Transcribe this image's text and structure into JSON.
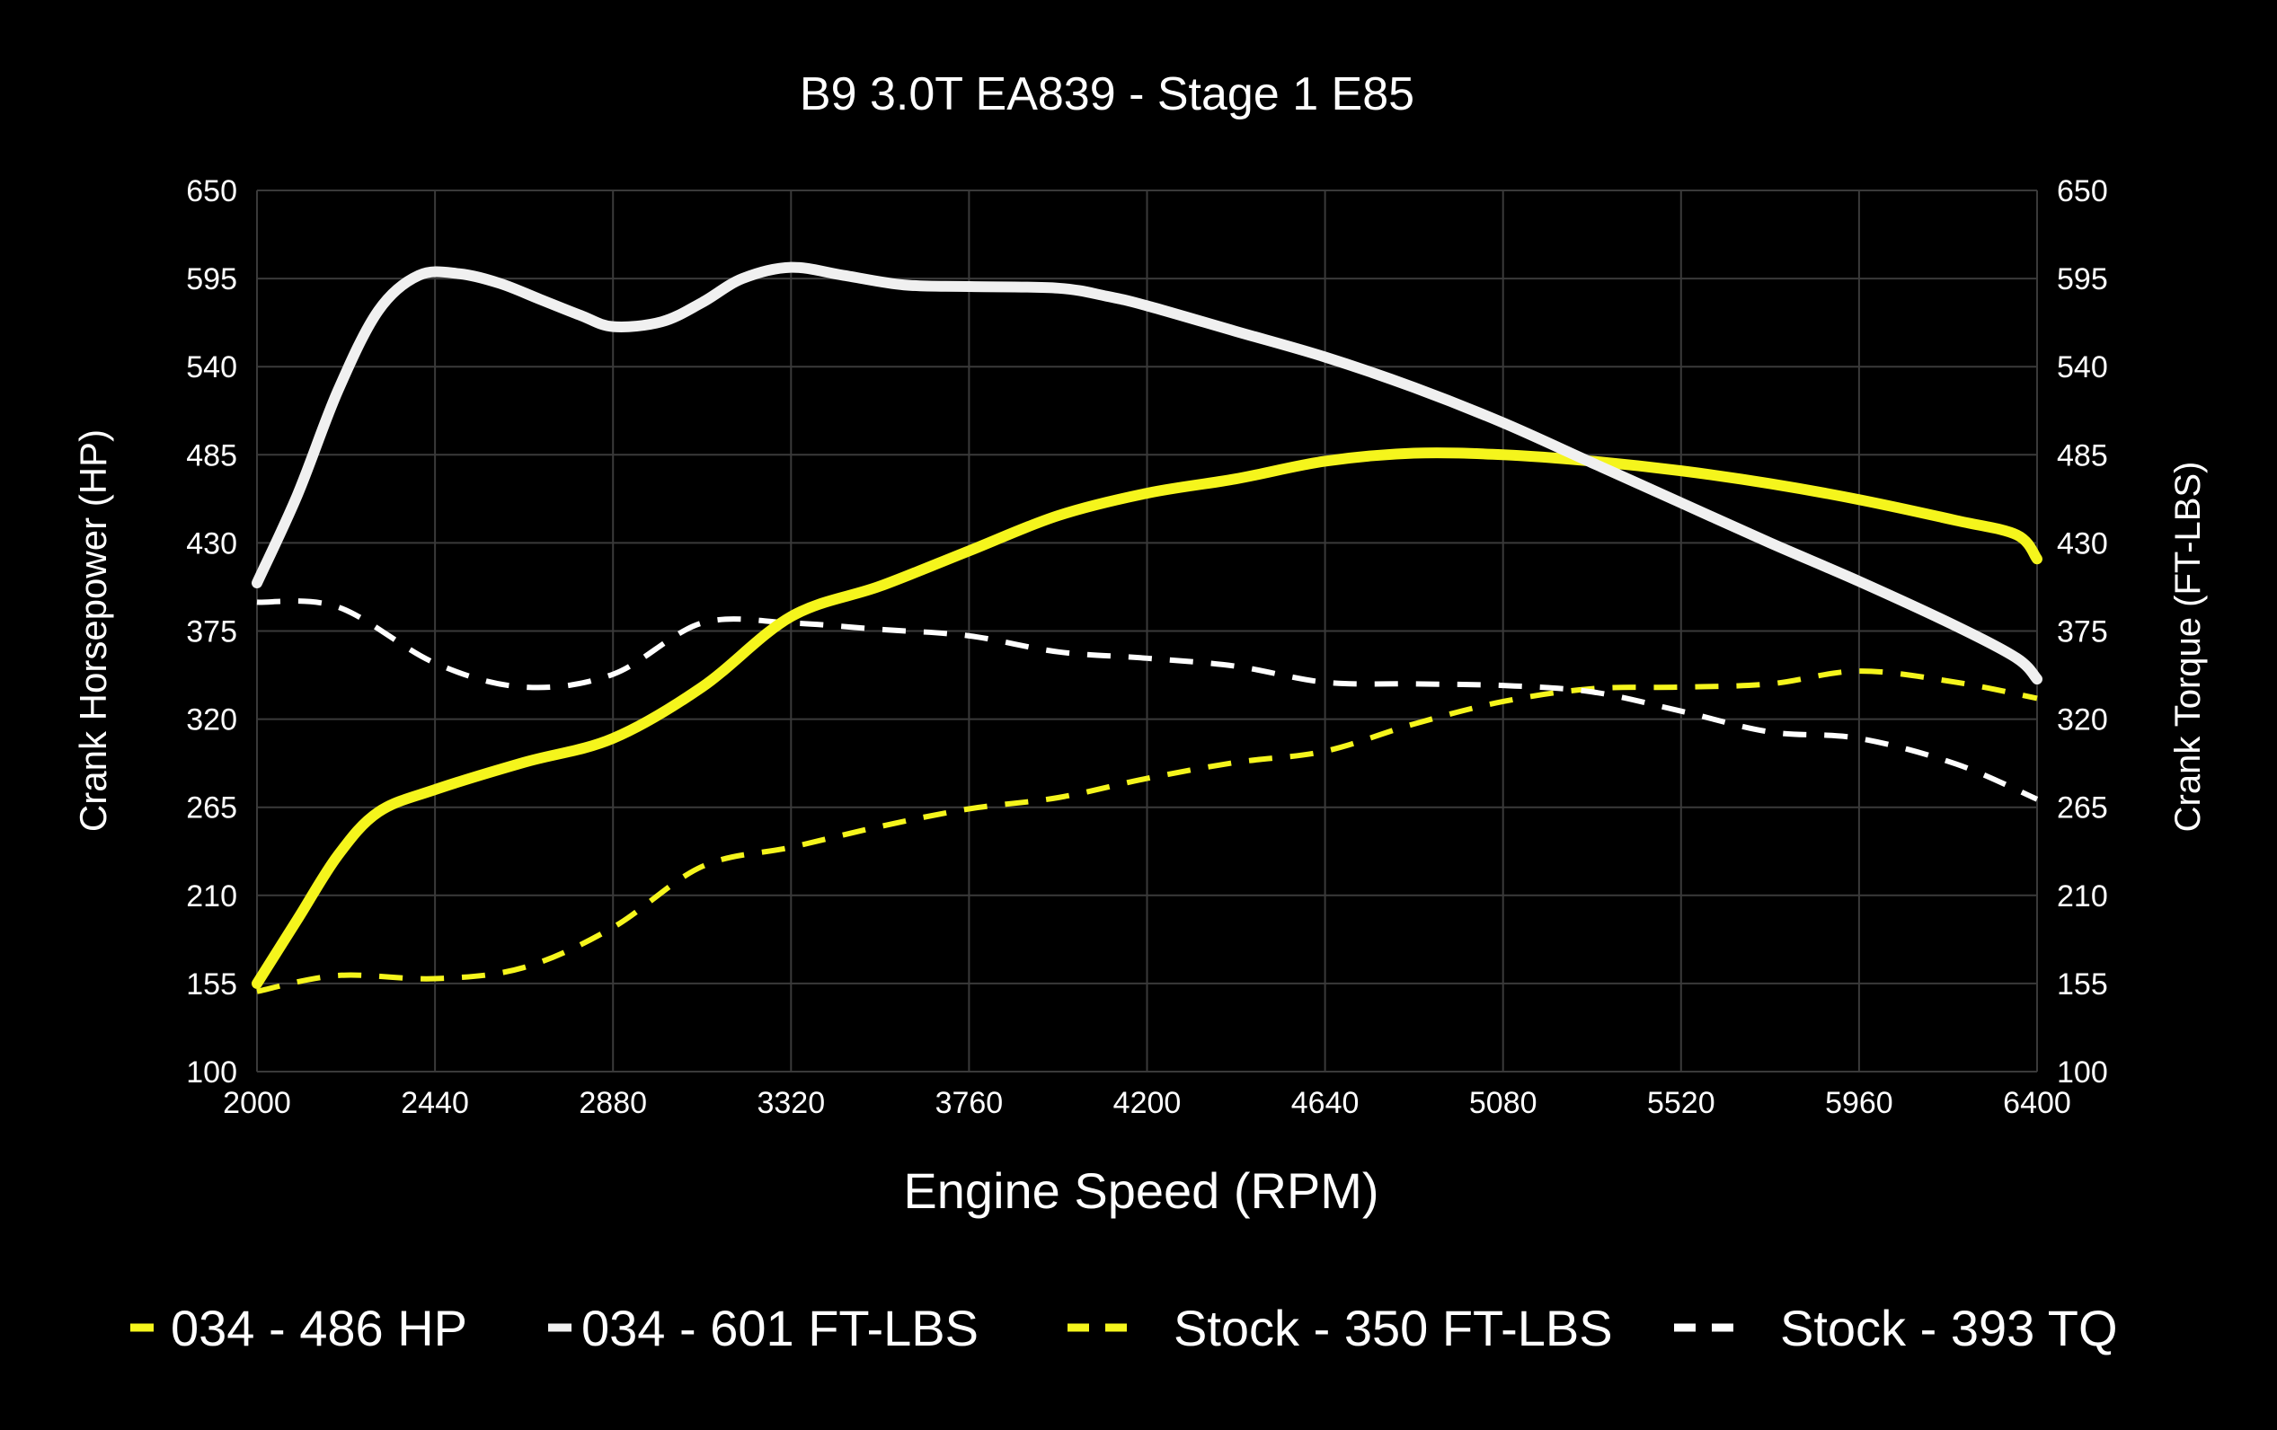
{
  "chart_data": {
    "type": "line",
    "title": "B9 3.0T EA839 - Stage 1 E85",
    "xlabel": "Engine Speed (RPM)",
    "ylabel_left": "Crank Horsepower (HP)",
    "ylabel_right": "Crank Torque (FT-LBS)",
    "xlim": [
      2000,
      6400
    ],
    "ylim": [
      100,
      650
    ],
    "xticks": [
      2000,
      2440,
      2880,
      3320,
      3760,
      4200,
      4640,
      5080,
      5520,
      5960,
      6400
    ],
    "yticks": [
      100,
      155,
      210,
      265,
      320,
      375,
      430,
      485,
      540,
      595,
      650
    ],
    "grid": true,
    "legend_position": "bottom",
    "background": "#000000",
    "series": [
      {
        "name": "034 - 486 HP",
        "color": "#f5f51c",
        "style": "solid",
        "x": [
          2000,
          2100,
          2200,
          2300,
          2440,
          2660,
          2880,
          3100,
          3320,
          3540,
          3760,
          3980,
          4200,
          4420,
          4640,
          4860,
          5080,
          5300,
          5520,
          5740,
          5960,
          6200,
          6350,
          6400
        ],
        "y": [
          155,
          195,
          235,
          262,
          276,
          293,
          308,
          340,
          384,
          403,
          425,
          447,
          461,
          470,
          481,
          486,
          485,
          481,
          475,
          467,
          457,
          444,
          435,
          420
        ]
      },
      {
        "name": "034 - 601 FT-LBS",
        "color": "#f0f0f0",
        "style": "solid",
        "x": [
          2000,
          2100,
          2200,
          2300,
          2400,
          2500,
          2600,
          2700,
          2800,
          2880,
          3000,
          3100,
          3200,
          3320,
          3450,
          3600,
          3760,
          3980,
          4100,
          4200,
          4420,
          4640,
          4860,
          5080,
          5300,
          5520,
          5740,
          5960,
          6200,
          6350,
          6400
        ],
        "y": [
          405,
          460,
          525,
          575,
          597,
          598,
          592,
          582,
          572,
          565,
          568,
          580,
          595,
          602,
          597,
          591,
          590,
          589,
          584,
          578,
          562,
          546,
          527,
          505,
          480,
          455,
          430,
          406,
          378,
          358,
          345
        ]
      },
      {
        "name": "Stock - 350 FT-LBS",
        "color": "#f5f51c",
        "style": "dashed",
        "x": [
          2000,
          2200,
          2440,
          2660,
          2880,
          3100,
          3320,
          3540,
          3760,
          3980,
          4200,
          4420,
          4640,
          4860,
          5080,
          5300,
          5520,
          5740,
          5960,
          6200,
          6400
        ],
        "y": [
          150,
          160,
          158,
          165,
          190,
          228,
          240,
          253,
          264,
          271,
          283,
          293,
          300,
          317,
          331,
          339,
          340,
          342,
          350,
          343,
          333
        ]
      },
      {
        "name": "Stock - 393 TQ",
        "color": "#ffffff",
        "style": "dashed",
        "x": [
          2000,
          2200,
          2440,
          2660,
          2880,
          3100,
          3320,
          3540,
          3760,
          3980,
          4200,
          4420,
          4640,
          4860,
          5080,
          5300,
          5520,
          5740,
          5960,
          6200,
          6400
        ],
        "y": [
          393,
          390,
          355,
          340,
          348,
          380,
          380,
          376,
          372,
          362,
          358,
          353,
          343,
          342,
          341,
          337,
          325,
          312,
          308,
          292,
          270
        ]
      }
    ]
  }
}
